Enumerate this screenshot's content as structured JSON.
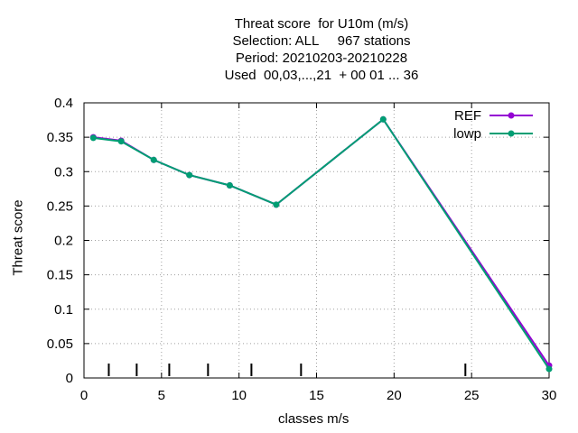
{
  "chart_data": {
    "type": "line",
    "title": [
      "Threat score  for U10m (m/s)",
      "Selection: ALL     967 stations",
      "Period: 20210203-20210228",
      "Used  00,03,...,21  + 00 01 ... 36"
    ],
    "xlabel": "classes m/s",
    "ylabel": "Threat score",
    "xlim": [
      0,
      30
    ],
    "ylim": [
      0,
      0.4
    ],
    "x_ticks": [
      "0",
      "5",
      "10",
      "15",
      "20",
      "25",
      "30"
    ],
    "y_ticks": [
      "0",
      "0.05",
      "0.1",
      "0.15",
      "0.2",
      "0.25",
      "0.3",
      "0.35",
      "0.4"
    ],
    "grid": true,
    "legend_position": "top-right",
    "class_markers_x": [
      1.6,
      3.4,
      5.5,
      8.0,
      10.8,
      14.0,
      24.6
    ],
    "series": [
      {
        "name": "REF",
        "color": "#9400d3",
        "x": [
          0.6,
          2.4,
          4.5,
          6.8,
          9.4,
          12.4,
          19.3,
          30.0
        ],
        "y": [
          0.35,
          0.345,
          0.317,
          0.295,
          0.28,
          0.252,
          0.376,
          0.018
        ]
      },
      {
        "name": "lowp",
        "color": "#009e73",
        "x": [
          0.6,
          2.4,
          4.5,
          6.8,
          9.4,
          12.4,
          19.3,
          30.0
        ],
        "y": [
          0.349,
          0.344,
          0.317,
          0.295,
          0.28,
          0.252,
          0.376,
          0.013
        ]
      }
    ]
  }
}
